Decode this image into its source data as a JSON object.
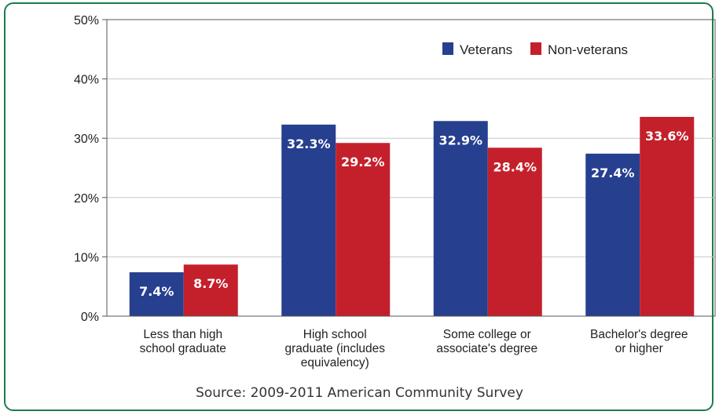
{
  "chart_data": {
    "type": "bar",
    "categories": [
      "Less than high school graduate",
      "High school graduate (includes equivalency)",
      "Some college or associate's degree",
      "Bachelor's degree or higher"
    ],
    "category_label_lines": [
      [
        "Less than high",
        "school graduate"
      ],
      [
        "High school",
        "graduate (includes",
        "equivalency)"
      ],
      [
        "Some college or",
        "associate's degree"
      ],
      [
        "Bachelor's degree",
        "or higher"
      ]
    ],
    "series": [
      {
        "name": "Veterans",
        "values": [
          7.4,
          32.3,
          32.9,
          27.4
        ],
        "color": "#263f8f"
      },
      {
        "name": "Non-veterans",
        "values": [
          8.7,
          29.2,
          28.4,
          33.6
        ],
        "color": "#c4202b"
      }
    ],
    "data_labels": [
      [
        "7.4%",
        "32.3%",
        "32.9%",
        "27.4%"
      ],
      [
        "8.7%",
        "29.2%",
        "28.4%",
        "33.6%"
      ]
    ],
    "ylim": [
      0,
      50
    ],
    "yticks": [
      0,
      10,
      20,
      30,
      40,
      50
    ],
    "ytick_labels": [
      "0%",
      "10%",
      "20%",
      "30%",
      "40%",
      "50%"
    ],
    "grid": true,
    "legend_position": "top-right"
  },
  "source": "Source: 2009-2011 American Community Survey",
  "colors": {
    "frame": "#1f7a4d",
    "veterans": "#263f8f",
    "nonveterans": "#c4202b"
  }
}
